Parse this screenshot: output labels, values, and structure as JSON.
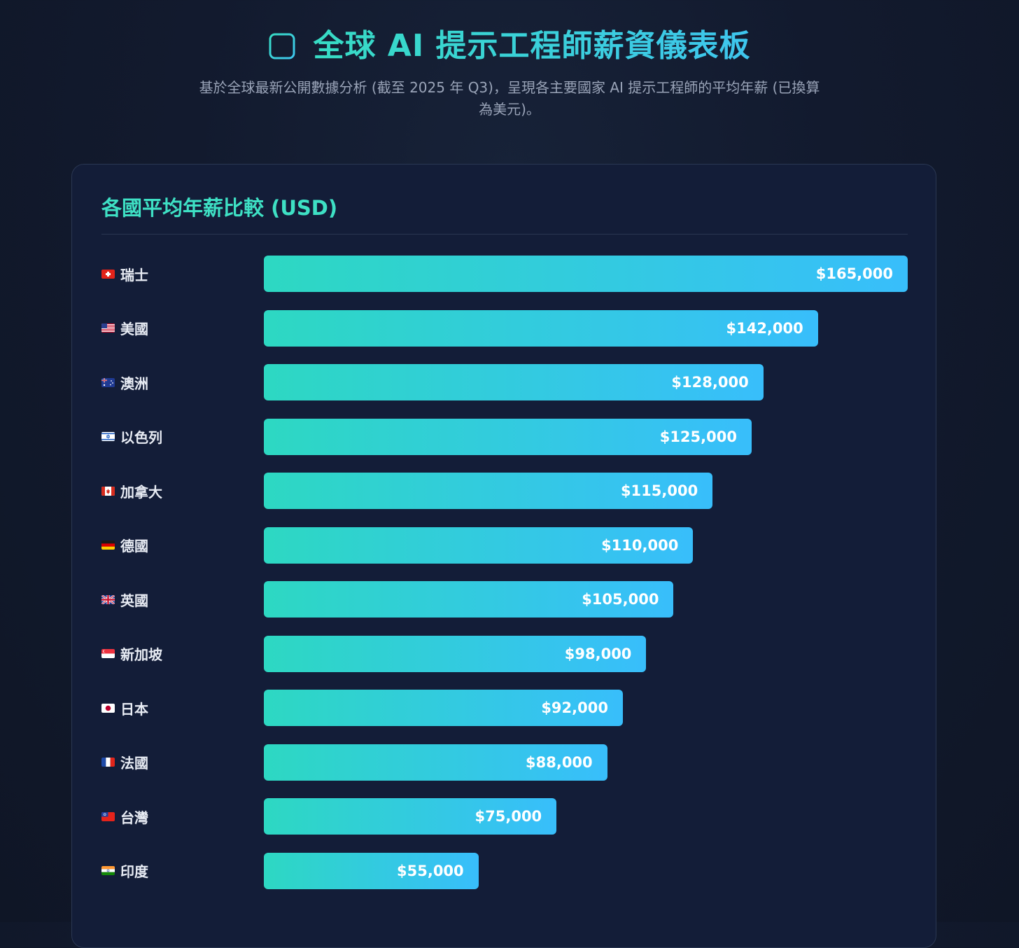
{
  "header": {
    "title": "全球 AI 提示工程師薪資儀表板",
    "title_icon": "bar-chart-icon",
    "subtitle": "基於全球最新公開數據分析 (截至 2025 年 Q3)，呈現各主要國家 AI 提示工程師的平均年薪 (已換算為美元)。"
  },
  "colors": {
    "accent_teal": "#37dcc4",
    "accent_blue": "#3ec6ee",
    "card_bg": "#131d38",
    "page_bg": "#121a2e"
  },
  "chart_data": {
    "type": "bar",
    "orientation": "horizontal",
    "title": "各國平均年薪比較 (USD)",
    "xlim": [
      0,
      165000
    ],
    "grid": false,
    "categories": [
      "瑞士",
      "美國",
      "澳洲",
      "以色列",
      "加拿大",
      "德國",
      "英國",
      "新加坡",
      "日本",
      "法國",
      "台灣",
      "印度"
    ],
    "flags": [
      "flag-switzerland-icon",
      "flag-usa-icon",
      "flag-australia-icon",
      "flag-israel-icon",
      "flag-canada-icon",
      "flag-germany-icon",
      "flag-uk-icon",
      "flag-singapore-icon",
      "flag-japan-icon",
      "flag-france-icon",
      "flag-taiwan-icon",
      "flag-india-icon"
    ],
    "values": [
      165000,
      142000,
      128000,
      125000,
      115000,
      110000,
      105000,
      98000,
      92000,
      88000,
      75000,
      55000
    ],
    "value_labels": [
      "$165,000",
      "$142,000",
      "$128,000",
      "$125,000",
      "$115,000",
      "$110,000",
      "$105,000",
      "$98,000",
      "$92,000",
      "$88,000",
      "$75,000",
      "$55,000"
    ]
  }
}
